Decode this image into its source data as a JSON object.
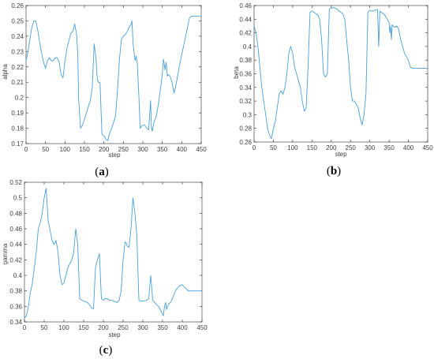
{
  "panels": [
    {
      "label_open": "(",
      "label_letter": "a",
      "label_close": ")",
      "chart_data": {
        "type": "line",
        "xlabel": "step",
        "ylabel": "alpha",
        "xlim": [
          0,
          450
        ],
        "ylim": [
          0.17,
          0.26
        ],
        "xticks": [
          0,
          50,
          100,
          150,
          200,
          250,
          300,
          350,
          400,
          450
        ],
        "yticks": [
          0.17,
          0.18,
          0.19,
          0.2,
          0.21,
          0.22,
          0.23,
          0.24,
          0.25,
          0.26
        ],
        "ytick_labels": [
          "0.17",
          "0.18",
          "0.19",
          "0.2",
          "0.21",
          "0.22",
          "0.23",
          "0.24",
          "0.25",
          "0.26"
        ],
        "grid": false,
        "line_color": "#4a9fd8",
        "x": [
          0,
          5,
          10,
          15,
          20,
          25,
          30,
          35,
          40,
          45,
          50,
          55,
          60,
          65,
          70,
          75,
          80,
          85,
          90,
          95,
          100,
          105,
          110,
          115,
          120,
          125,
          130,
          133,
          135,
          140,
          145,
          150,
          155,
          160,
          165,
          170,
          175,
          180,
          182,
          185,
          190,
          195,
          200,
          203,
          205,
          210,
          215,
          220,
          225,
          230,
          235,
          240,
          245,
          250,
          255,
          260,
          265,
          270,
          272,
          275,
          280,
          283,
          286,
          290,
          293,
          296,
          300,
          305,
          310,
          315,
          320,
          322,
          324,
          327,
          330,
          335,
          340,
          345,
          350,
          353,
          355,
          357,
          360,
          363,
          365,
          370,
          375,
          380,
          385,
          390,
          395,
          400,
          405,
          410,
          415,
          420,
          425,
          430,
          435,
          440,
          445,
          450
        ],
        "values": [
          0.224,
          0.23,
          0.238,
          0.246,
          0.25,
          0.25,
          0.244,
          0.236,
          0.229,
          0.223,
          0.219,
          0.224,
          0.226,
          0.224,
          0.224,
          0.226,
          0.226,
          0.223,
          0.215,
          0.213,
          0.224,
          0.232,
          0.237,
          0.242,
          0.243,
          0.248,
          0.241,
          0.228,
          0.2,
          0.18,
          0.182,
          0.186,
          0.19,
          0.194,
          0.198,
          0.206,
          0.235,
          0.225,
          0.215,
          0.21,
          0.21,
          0.176,
          0.175,
          0.174,
          0.173,
          0.172,
          0.177,
          0.18,
          0.184,
          0.188,
          0.205,
          0.225,
          0.238,
          0.24,
          0.241,
          0.243,
          0.246,
          0.248,
          0.25,
          0.235,
          0.224,
          0.227,
          0.222,
          0.2,
          0.18,
          0.181,
          0.182,
          0.182,
          0.18,
          0.179,
          0.198,
          0.181,
          0.178,
          0.182,
          0.185,
          0.188,
          0.196,
          0.205,
          0.215,
          0.225,
          0.222,
          0.218,
          0.223,
          0.214,
          0.215,
          0.214,
          0.21,
          0.203,
          0.208,
          0.215,
          0.222,
          0.228,
          0.234,
          0.24,
          0.246,
          0.252,
          0.253,
          0.253,
          0.253,
          0.253,
          0.253,
          0.253
        ]
      }
    },
    {
      "label_open": "(",
      "label_letter": "b",
      "label_close": ")",
      "chart_data": {
        "type": "line",
        "xlabel": "step",
        "ylabel": "beta",
        "xlim": [
          0,
          450
        ],
        "ylim": [
          0.26,
          0.46
        ],
        "xticks": [
          0,
          50,
          100,
          150,
          200,
          250,
          300,
          350,
          400,
          450
        ],
        "yticks": [
          0.26,
          0.28,
          0.3,
          0.32,
          0.34,
          0.36,
          0.38,
          0.4,
          0.42,
          0.44,
          0.46
        ],
        "ytick_labels": [
          "0.26",
          "0.28",
          "0.3",
          "0.32",
          "0.34",
          "0.36",
          "0.38",
          "0.4",
          "0.42",
          "0.44",
          "0.46"
        ],
        "grid": false,
        "line_color": "#4a9fd8",
        "x": [
          0,
          5,
          10,
          15,
          20,
          25,
          30,
          35,
          40,
          45,
          50,
          55,
          60,
          65,
          70,
          75,
          80,
          85,
          90,
          95,
          100,
          105,
          110,
          115,
          120,
          125,
          130,
          135,
          140,
          145,
          150,
          155,
          160,
          165,
          170,
          175,
          180,
          185,
          190,
          195,
          200,
          205,
          210,
          215,
          220,
          225,
          230,
          235,
          240,
          245,
          250,
          255,
          260,
          265,
          270,
          275,
          280,
          285,
          290,
          295,
          300,
          305,
          310,
          315,
          320,
          323,
          326,
          328,
          330,
          335,
          340,
          345,
          350,
          352,
          354,
          356,
          358,
          360,
          365,
          370,
          375,
          380,
          385,
          390,
          395,
          400,
          405,
          410,
          415,
          420,
          425,
          430,
          435,
          440,
          445,
          450
        ],
        "values": [
          0.43,
          0.42,
          0.4,
          0.37,
          0.34,
          0.32,
          0.3,
          0.28,
          0.27,
          0.265,
          0.28,
          0.29,
          0.31,
          0.33,
          0.335,
          0.33,
          0.34,
          0.36,
          0.39,
          0.4,
          0.39,
          0.37,
          0.36,
          0.35,
          0.34,
          0.32,
          0.305,
          0.31,
          0.37,
          0.45,
          0.452,
          0.45,
          0.448,
          0.446,
          0.44,
          0.41,
          0.36,
          0.355,
          0.36,
          0.455,
          0.456,
          0.457,
          0.456,
          0.455,
          0.452,
          0.45,
          0.448,
          0.44,
          0.41,
          0.38,
          0.34,
          0.32,
          0.32,
          0.315,
          0.31,
          0.295,
          0.285,
          0.3,
          0.33,
          0.45,
          0.453,
          0.452,
          0.452,
          0.454,
          0.454,
          0.4,
          0.452,
          0.45,
          0.45,
          0.448,
          0.445,
          0.44,
          0.435,
          0.42,
          0.43,
          0.41,
          0.432,
          0.43,
          0.428,
          0.43,
          0.425,
          0.41,
          0.4,
          0.39,
          0.385,
          0.38,
          0.37,
          0.368,
          0.368,
          0.368,
          0.368,
          0.368,
          0.368,
          0.368,
          0.368,
          0.368
        ]
      }
    },
    {
      "label_open": "(",
      "label_letter": "c",
      "label_close": ")",
      "chart_data": {
        "type": "line",
        "xlabel": "step",
        "ylabel": "gamma",
        "xlim": [
          0,
          450
        ],
        "ylim": [
          0.34,
          0.52
        ],
        "xticks": [
          0,
          50,
          100,
          150,
          200,
          250,
          300,
          350,
          400,
          450
        ],
        "yticks": [
          0.34,
          0.36,
          0.38,
          0.4,
          0.42,
          0.44,
          0.46,
          0.48,
          0.5,
          0.52
        ],
        "ytick_labels": [
          "0.34",
          "0.36",
          "0.38",
          "0.4",
          "0.42",
          "0.44",
          "0.46",
          "0.48",
          "0.5",
          "0.52"
        ],
        "grid": false,
        "line_color": "#4a9fd8",
        "x": [
          0,
          5,
          10,
          15,
          20,
          25,
          30,
          35,
          40,
          45,
          50,
          55,
          60,
          65,
          70,
          75,
          80,
          85,
          90,
          95,
          100,
          105,
          110,
          115,
          120,
          125,
          130,
          135,
          140,
          145,
          150,
          155,
          160,
          165,
          170,
          175,
          180,
          185,
          190,
          195,
          200,
          205,
          210,
          215,
          220,
          225,
          230,
          235,
          240,
          245,
          250,
          255,
          258,
          260,
          265,
          270,
          275,
          280,
          285,
          290,
          295,
          300,
          305,
          310,
          315,
          320,
          325,
          328,
          330,
          335,
          340,
          345,
          350,
          352,
          355,
          358,
          360,
          363,
          365,
          370,
          375,
          380,
          385,
          390,
          395,
          400,
          405,
          410,
          415,
          420,
          425,
          430,
          435,
          440,
          445,
          450
        ],
        "values": [
          0.345,
          0.348,
          0.36,
          0.378,
          0.39,
          0.41,
          0.43,
          0.46,
          0.468,
          0.48,
          0.5,
          0.512,
          0.47,
          0.458,
          0.445,
          0.44,
          0.445,
          0.43,
          0.4,
          0.388,
          0.39,
          0.4,
          0.41,
          0.415,
          0.42,
          0.43,
          0.46,
          0.44,
          0.37,
          0.368,
          0.367,
          0.366,
          0.365,
          0.362,
          0.358,
          0.357,
          0.41,
          0.42,
          0.428,
          0.37,
          0.368,
          0.37,
          0.37,
          0.368,
          0.368,
          0.367,
          0.366,
          0.365,
          0.368,
          0.38,
          0.42,
          0.443,
          0.442,
          0.438,
          0.436,
          0.46,
          0.5,
          0.48,
          0.45,
          0.368,
          0.367,
          0.367,
          0.367,
          0.368,
          0.37,
          0.4,
          0.368,
          0.366,
          0.365,
          0.362,
          0.36,
          0.355,
          0.35,
          0.348,
          0.36,
          0.365,
          0.356,
          0.36,
          0.363,
          0.365,
          0.37,
          0.377,
          0.382,
          0.385,
          0.387,
          0.388,
          0.385,
          0.383,
          0.38,
          0.38,
          0.38,
          0.38,
          0.38,
          0.38,
          0.38,
          0.38
        ]
      }
    }
  ]
}
